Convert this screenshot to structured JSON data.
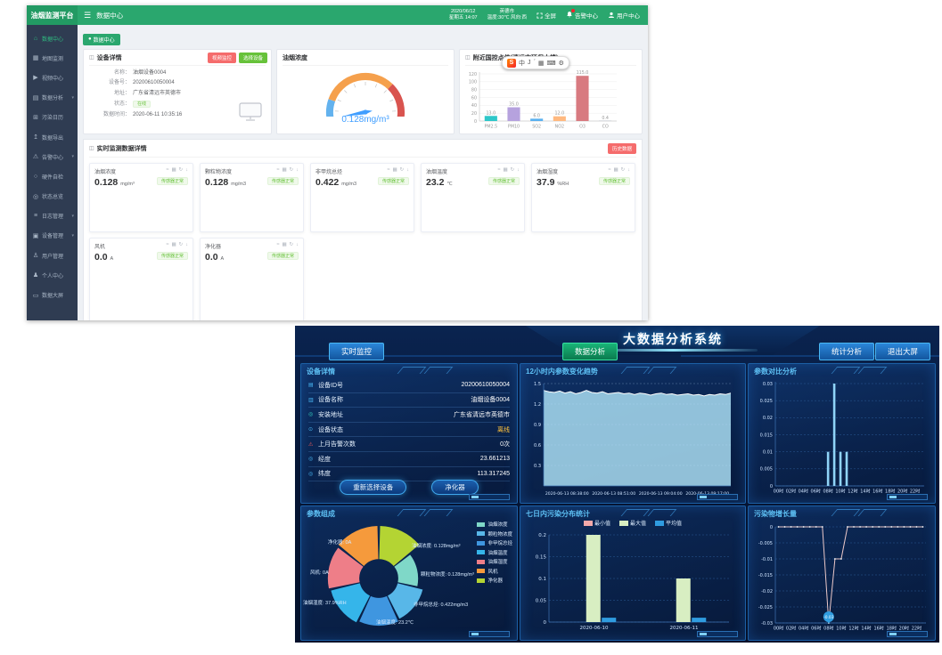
{
  "win1": {
    "brand": "油烟监测平台",
    "topbar": {
      "nav_title": "数据中心",
      "date": "2020/06/12",
      "week_time": "星期五 14:07",
      "city": "英德市",
      "weather": "温度:30℃ 风向:西",
      "fullscreen": "全屏",
      "alarm": "告警中心",
      "user": "用户中心"
    },
    "sidebar": [
      {
        "label": "数据中心"
      },
      {
        "label": "地图监测"
      },
      {
        "label": "视频中心"
      },
      {
        "label": "数据分析"
      },
      {
        "label": "污染日历"
      },
      {
        "label": "数据导出"
      },
      {
        "label": "告警中心"
      },
      {
        "label": "硬件自检"
      },
      {
        "label": "状态总览"
      },
      {
        "label": "日志管理"
      },
      {
        "label": "设备管理"
      },
      {
        "label": "用户管理"
      },
      {
        "label": "个人中心"
      },
      {
        "label": "数据大屏"
      }
    ],
    "tab": "数据中心",
    "device": {
      "title": "设备详情",
      "video_btn": "视频监控",
      "select_btn": "选择设备",
      "name_label": "名称：",
      "name": "油烟设备0004",
      "sn_label": "设备号：",
      "sn": "20200610050004",
      "addr_label": "地址：",
      "addr": "广东省清远市英德市",
      "status_label": "状态：",
      "status": "在线",
      "time_label": "数据时间：",
      "time": "2020-06-11 10:35:16"
    },
    "realtime": {
      "title": "实时监测数据详情",
      "action_btn": "历史数据",
      "badge": "传感器正常",
      "cards": [
        {
          "name": "油烟浓度",
          "value": "0.128",
          "unit": "mg/m³"
        },
        {
          "name": "颗粒物浓度",
          "value": "0.128",
          "unit": "mg/m3"
        },
        {
          "name": "非甲烷总烃",
          "value": "0.422",
          "unit": "mg/m3"
        },
        {
          "name": "油烟温度",
          "value": "23.2",
          "unit": "℃"
        },
        {
          "name": "油烟湿度",
          "value": "37.9",
          "unit": "%RH"
        },
        {
          "name": "风机",
          "value": "0.0",
          "unit": "A"
        },
        {
          "name": "净化器",
          "value": "0.0",
          "unit": "A"
        }
      ]
    }
  },
  "sogou": {
    "logo": "S",
    "mode": "中",
    "items": [
      "J",
      "ˊ",
      "▦",
      "⌨",
      "⚙"
    ]
  },
  "win2": {
    "title": "大数据分析系统",
    "btn_realtime": "实时监控",
    "btn_analysis": "数据分析",
    "btn_stats": "统计分析",
    "btn_exit": "退出大屏",
    "device": {
      "title": "设备详情",
      "rows": [
        {
          "label": "设备ID号",
          "value": "20200610050004"
        },
        {
          "label": "设备名称",
          "value": "油烟设备0004"
        },
        {
          "label": "安装地址",
          "value": "广东省清远市英德市"
        },
        {
          "label": "设备状态",
          "value": "离线"
        },
        {
          "label": "上月告警次数",
          "value": "0次"
        },
        {
          "label": "经度",
          "value": "23.661213"
        },
        {
          "label": "纬度",
          "value": "113.317245"
        }
      ],
      "reselect_btn": "重新选择设备",
      "purifier_btn": "净化器"
    }
  },
  "chart_data": [
    {
      "id": "station",
      "type": "bar",
      "title": "附近国控点值(清远市环保大楼)",
      "categories": [
        "PM2.5",
        "PM10",
        "SO2",
        "NO2",
        "O3",
        "CO"
      ],
      "values": [
        13,
        35,
        6,
        12,
        115,
        0.4
      ],
      "value_labels": [
        "13.0",
        "35.0",
        "6.0",
        "12.0",
        "115.0",
        "0.4"
      ],
      "colors": [
        "#2ec7c9",
        "#b6a2de",
        "#5ab1ef",
        "#ffb980",
        "#d87a80",
        "#8d98b3"
      ],
      "ylim": [
        0,
        120
      ],
      "yticks": [
        0,
        20,
        40,
        60,
        80,
        100,
        120
      ],
      "theme": "light"
    },
    {
      "id": "gauge",
      "type": "gauge",
      "title": "油烟浓度",
      "value": 0.128,
      "min": 0,
      "max": 3,
      "display": "0.128mg/m³",
      "segments": [
        {
          "frac": 0.18,
          "color": "#63b2ee"
        },
        {
          "frac": 0.52,
          "color": "#f5a04c"
        },
        {
          "frac": 0.3,
          "color": "#d9544f"
        }
      ]
    },
    {
      "id": "trend12h",
      "type": "area",
      "title": "12小时内参数变化趋势",
      "x_labels": [
        "2020-06-13 08:38:00",
        "2020-06-13 08:51:00",
        "2020-06-13 09:04:00",
        "2020-06-13 09:17:00"
      ],
      "values": [
        1.4,
        1.38,
        1.37,
        1.39,
        1.36,
        1.38,
        1.35,
        1.37,
        1.4,
        1.37,
        1.36,
        1.38,
        1.35,
        1.36,
        1.37,
        1.35,
        1.36,
        1.34,
        1.36,
        1.35,
        1.33,
        1.35,
        1.36,
        1.34,
        1.35,
        1.33,
        1.34,
        1.35,
        1.33,
        1.34,
        1.32,
        1.34,
        1.33,
        1.35,
        1.34,
        1.36
      ],
      "ylim": [
        0,
        1.5
      ],
      "yticks": [
        0.3,
        0.6,
        0.9,
        1.2,
        1.5
      ],
      "line_color": "#ffffff",
      "fill_color": "#a9ddf2",
      "theme": "dark"
    },
    {
      "id": "compare",
      "type": "bar",
      "title": "参数对比分析",
      "categories": [
        "00时",
        "01时",
        "02时",
        "03时",
        "04时",
        "05时",
        "06时",
        "07时",
        "08时",
        "09时",
        "10时",
        "11时",
        "12时",
        "13时",
        "14时",
        "15时",
        "16时",
        "17时",
        "18时",
        "19时",
        "20时",
        "21时",
        "22时",
        "23时"
      ],
      "values": [
        0,
        0,
        0,
        0,
        0,
        0,
        0,
        0,
        0.01,
        0.03,
        0.01,
        0.01,
        0,
        0,
        0,
        0,
        0,
        0,
        0,
        0,
        0,
        0,
        0,
        0
      ],
      "bar_color": "#8fd4f8",
      "ylim": [
        0,
        0.03
      ],
      "yticks": [
        0,
        0.005,
        0.01,
        0.015,
        0.02,
        0.025,
        0.03
      ],
      "label_step": 2,
      "theme": "dark"
    },
    {
      "id": "week",
      "type": "grouped_bar",
      "title": "七日内污染分布统计",
      "categories": [
        "2020-06-10",
        "2020-06-11"
      ],
      "series": [
        {
          "name": "最小值",
          "color": "#f4a9a9",
          "values": [
            0,
            0
          ]
        },
        {
          "name": "最大值",
          "color": "#d8eec2",
          "values": [
            0.2,
            0.1
          ]
        },
        {
          "name": "平均值",
          "color": "#2f9ce0",
          "values": [
            0.01,
            0.01
          ]
        }
      ],
      "ylim": [
        0,
        0.2
      ],
      "yticks": [
        0,
        0.05,
        0.1,
        0.15,
        0.2
      ],
      "theme": "dark"
    },
    {
      "id": "growth",
      "type": "line",
      "title": "污染物增长量",
      "categories": [
        "00时",
        "01时",
        "02时",
        "03时",
        "04时",
        "05时",
        "06时",
        "07时",
        "08时",
        "09时",
        "10时",
        "11时",
        "12时",
        "13时",
        "14时",
        "15时",
        "16时",
        "17时",
        "18时",
        "19时",
        "20时",
        "21时",
        "22时",
        "23时"
      ],
      "values": [
        0,
        0,
        0,
        0,
        0,
        0,
        0,
        0,
        -0.03,
        -0.01,
        -0.01,
        0,
        0,
        0,
        0,
        0,
        0,
        0,
        0,
        0,
        0,
        0,
        0,
        0
      ],
      "ylim": [
        -0.03,
        0
      ],
      "yticks": [
        0,
        -0.005,
        -0.01,
        -0.015,
        -0.02,
        -0.025,
        -0.03
      ],
      "line_color": "#ecc9c9",
      "dot_color": "#ffffff",
      "label_step": 2,
      "marker": {
        "index": 8,
        "label": "-0.03",
        "color": "#2f9ce0"
      },
      "theme": "dark"
    },
    {
      "id": "compose",
      "type": "donut",
      "title": "参数组成",
      "legend": [
        {
          "name": "油烟浓度",
          "color": "#7fd8c8"
        },
        {
          "name": "颗粒物浓度",
          "color": "#58b7e8"
        },
        {
          "name": "非甲烷总烃",
          "color": "#3f96e0"
        },
        {
          "name": "油烟温度",
          "color": "#35b5ea"
        },
        {
          "name": "油烟湿度",
          "color": "#ee7e88"
        },
        {
          "name": "风机",
          "color": "#f59a3c"
        },
        {
          "name": "净化器",
          "color": "#b4d433"
        }
      ],
      "labels": [
        "净化器: 0A",
        "风机: 0A",
        "油烟湿度: 37.9%RH",
        "油烟温度: 23.2℃",
        "非甲烷总烃: 0.422mg/m3",
        "颗粒物浓度: 0.128mg/m³",
        "油烟浓度: 0.128mg/m³"
      ]
    }
  ]
}
